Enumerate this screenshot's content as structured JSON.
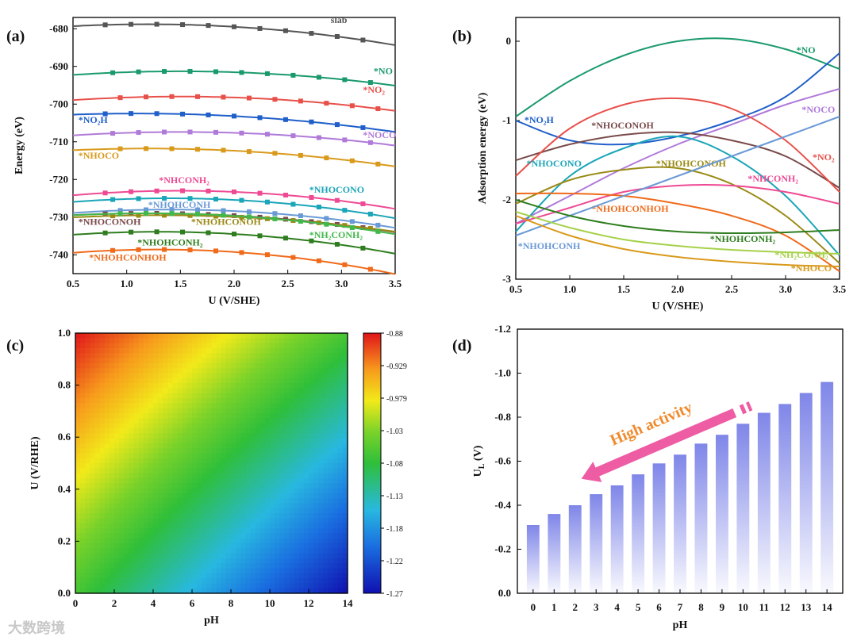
{
  "watermark": "大数跨境",
  "chart_data": [
    {
      "panel": "(a)",
      "type": "line",
      "xlabel": "U (V/SHE)",
      "ylabel": "Energy (eV)",
      "xlim": [
        0.5,
        3.5
      ],
      "ylim": [
        -745,
        -677
      ],
      "xticks": [
        0.5,
        1.0,
        1.5,
        2.0,
        2.5,
        3.0,
        3.5
      ],
      "yticks": [
        -680,
        -690,
        -700,
        -710,
        -720,
        -730,
        -740
      ],
      "markers": "square",
      "series": [
        {
          "name": "slab",
          "color": "#555555",
          "vertex_u": 1.2,
          "vertex_e": -678.8,
          "curv": 1.05,
          "label_pos": [
            2.9,
            -678.5
          ]
        },
        {
          "name": "*NO",
          "color": "#1a9a6c",
          "vertex_u": 1.5,
          "vertex_e": -691.3,
          "curv": 0.95,
          "label_pos": [
            3.3,
            -692
          ]
        },
        {
          "name": "*NO₂",
          "color": "#e8504a",
          "vertex_u": 1.5,
          "vertex_e": -698.0,
          "curv": 0.95,
          "label_pos": [
            3.2,
            -697
          ]
        },
        {
          "name": "*NO₂H",
          "color": "#1f5fc9",
          "vertex_u": 1.1,
          "vertex_e": -702.5,
          "curv": 0.85,
          "label_pos": [
            0.55,
            -705
          ]
        },
        {
          "name": "*NOCO",
          "color": "#b07ad8",
          "vertex_u": 1.5,
          "vertex_e": -707.4,
          "curv": 0.9,
          "label_pos": [
            3.2,
            -709
          ]
        },
        {
          "name": "*NHOCO",
          "color": "#d99a1c",
          "vertex_u": 1.2,
          "vertex_e": -711.8,
          "curv": 0.9,
          "label_pos": [
            0.55,
            -714.5
          ]
        },
        {
          "name": "*NHCONH₂",
          "color": "#ee4a93",
          "vertex_u": 1.5,
          "vertex_e": -723.0,
          "curv": 1.2,
          "label_pos": [
            1.3,
            -721
          ]
        },
        {
          "name": "*NHOCONO",
          "color": "#1aa5b8",
          "vertex_u": 1.4,
          "vertex_e": -725.0,
          "curv": 1.2,
          "label_pos": [
            2.7,
            -723.5
          ]
        },
        {
          "name": "*NHOHCONH",
          "color": "#6a9ad6",
          "vertex_u": 1.4,
          "vertex_e": -728.0,
          "curv": 1.1,
          "label_pos": [
            1.2,
            -727.5
          ]
        },
        {
          "name": "*NHOCONOH",
          "color": "#7a4a4a",
          "vertex_u": 1.2,
          "vertex_e": -729.0,
          "curv": 0.95,
          "label_pos": [
            0.55,
            -732
          ]
        },
        {
          "name": "*NHOHCONOH",
          "color": "#9a8a16",
          "vertex_u": 1.3,
          "vertex_e": -729.5,
          "curv": 0.9,
          "label_pos": [
            1.6,
            -732
          ]
        },
        {
          "name": "*NH₂CONH₂",
          "color": "#42b84a",
          "vertex_u": 1.2,
          "vertex_e": -729.0,
          "curv": 1.05,
          "label_pos": [
            2.7,
            -735.5
          ]
        },
        {
          "name": "*NHOHCONH₂",
          "color": "#2e7d1e",
          "vertex_u": 1.3,
          "vertex_e": -733.9,
          "curv": 1.2,
          "label_pos": [
            1.1,
            -737.5
          ]
        },
        {
          "name": "*NHOHCONHOH",
          "color": "#ef6a1a",
          "vertex_u": 1.3,
          "vertex_e": -738.6,
          "curv": 1.35,
          "label_pos": [
            0.65,
            -741.5
          ]
        }
      ]
    },
    {
      "panel": "(b)",
      "type": "line",
      "xlabel": "U (V/SHE)",
      "ylabel": "Adsorption energy (eV)",
      "xlim": [
        0.5,
        3.5
      ],
      "ylim": [
        -3,
        0.3
      ],
      "xticks": [
        0.5,
        1.0,
        1.5,
        2.0,
        2.5,
        3.0,
        3.5
      ],
      "yticks": [
        0,
        -1,
        -2,
        -3
      ],
      "series": [
        {
          "name": "*NO",
          "color": "#1a9a6c",
          "u": [
            0.5,
            1.0,
            1.5,
            2.0,
            2.5,
            3.0,
            3.5
          ],
          "e": [
            -0.95,
            -0.5,
            -0.18,
            0.0,
            0.03,
            -0.1,
            -0.35
          ],
          "label_pos": [
            3.1,
            -0.15
          ]
        },
        {
          "name": "*NO₂H",
          "color": "#1f5fc9",
          "u": [
            0.5,
            1.0,
            1.5,
            2.0,
            2.5,
            3.0,
            3.5
          ],
          "e": [
            -1.0,
            -1.25,
            -1.3,
            -1.2,
            -1.0,
            -0.7,
            -0.15
          ],
          "label_pos": [
            0.58,
            -1.03
          ]
        },
        {
          "name": "*NOCO",
          "color": "#b07ad8",
          "u": [
            0.5,
            1.0,
            1.5,
            2.0,
            2.5,
            3.0,
            3.5
          ],
          "e": [
            -2.3,
            -1.95,
            -1.6,
            -1.3,
            -1.05,
            -0.8,
            -0.6
          ],
          "label_pos": [
            3.15,
            -0.9
          ]
        },
        {
          "name": "*NHOCONOH",
          "color": "#7a4a4a",
          "u": [
            0.5,
            1.0,
            1.5,
            2.0,
            2.5,
            3.0,
            3.5
          ],
          "e": [
            -1.5,
            -1.3,
            -1.18,
            -1.15,
            -1.25,
            -1.45,
            -1.85
          ],
          "label_pos": [
            1.2,
            -1.1
          ]
        },
        {
          "name": "*NO₂",
          "color": "#e8504a",
          "u": [
            0.5,
            1.0,
            1.5,
            2.0,
            2.5,
            3.0,
            3.5
          ],
          "e": [
            -1.7,
            -1.1,
            -0.8,
            -0.72,
            -0.85,
            -1.25,
            -1.9
          ],
          "label_pos": [
            3.25,
            -1.5
          ]
        },
        {
          "name": "*NHOCONO",
          "color": "#1aa5b8",
          "u": [
            0.5,
            1.0,
            1.5,
            2.0,
            2.5,
            3.0,
            3.5
          ],
          "e": [
            -2.4,
            -1.7,
            -1.35,
            -1.2,
            -1.45,
            -1.95,
            -2.7
          ],
          "label_pos": [
            0.6,
            -1.58
          ]
        },
        {
          "name": "*NHOHCONOH",
          "color": "#9a8a16",
          "u": [
            0.5,
            1.0,
            1.5,
            2.0,
            2.5,
            3.0,
            3.5
          ],
          "e": [
            -2.05,
            -1.75,
            -1.62,
            -1.6,
            -1.8,
            -2.2,
            -2.8
          ],
          "label_pos": [
            1.8,
            -1.58
          ]
        },
        {
          "name": "*NHCONH₂",
          "color": "#ee4a93",
          "u": [
            0.5,
            1.0,
            1.5,
            2.0,
            2.5,
            3.0,
            3.5
          ],
          "e": [
            -2.3,
            -2.1,
            -1.9,
            -1.82,
            -1.82,
            -1.9,
            -2.05
          ],
          "label_pos": [
            2.65,
            -1.77
          ]
        },
        {
          "name": "*NHOHCONHOH",
          "color": "#ef6a1a",
          "u": [
            0.5,
            1.0,
            1.5,
            2.0,
            2.5,
            3.0,
            3.5
          ],
          "e": [
            -1.92,
            -1.92,
            -1.95,
            -2.05,
            -2.2,
            -2.45,
            -2.9
          ],
          "label_pos": [
            1.2,
            -2.15
          ]
        },
        {
          "name": "*NHOHCONH",
          "color": "#6a9ad6",
          "u": [
            0.5,
            1.0,
            1.5,
            2.0,
            2.5,
            3.0,
            3.5
          ],
          "e": [
            -2.45,
            -2.2,
            -1.95,
            -1.7,
            -1.45,
            -1.2,
            -0.95
          ],
          "label_pos": [
            0.52,
            -2.62
          ]
        },
        {
          "name": "*NHOHCONH₂",
          "color": "#2e7d1e",
          "u": [
            0.5,
            1.0,
            1.5,
            2.0,
            2.5,
            3.0,
            3.5
          ],
          "e": [
            -2.0,
            -2.2,
            -2.33,
            -2.4,
            -2.42,
            -2.41,
            -2.38
          ],
          "label_pos": [
            2.3,
            -2.53
          ]
        },
        {
          "name": "*NH₂CONH₂",
          "color": "#a6d14a",
          "u": [
            0.5,
            1.0,
            1.5,
            2.0,
            2.5,
            3.0,
            3.5
          ],
          "e": [
            -2.15,
            -2.35,
            -2.5,
            -2.58,
            -2.63,
            -2.66,
            -2.68
          ],
          "label_pos": [
            2.9,
            -2.73
          ]
        },
        {
          "name": "*NHOCO",
          "color": "#d99a1c",
          "u": [
            0.5,
            1.0,
            1.5,
            2.0,
            2.5,
            3.0,
            3.5
          ],
          "e": [
            -2.2,
            -2.45,
            -2.62,
            -2.72,
            -2.78,
            -2.82,
            -2.84
          ],
          "label_pos": [
            3.05,
            -2.9
          ]
        }
      ]
    },
    {
      "panel": "(c)",
      "type": "heatmap",
      "xlabel": "pH",
      "ylabel": "U (V/RHE)",
      "xlim": [
        0,
        14
      ],
      "ylim": [
        0,
        1.0
      ],
      "xticks": [
        0,
        2,
        4,
        6,
        8,
        10,
        12,
        14
      ],
      "yticks": [
        0.0,
        0.2,
        0.4,
        0.6,
        0.8,
        1.0
      ],
      "colorbar_ticks": [
        "-0.88",
        "-0.929",
        "-0.979",
        "-1.03",
        "-1.08",
        "-1.13",
        "-1.18",
        "-1.22",
        "-1.27"
      ],
      "colorbar_range": [
        -1.27,
        -0.88
      ],
      "value_at_corners": {
        "pH0_U1": -0.88,
        "pH0_U0": -1.06,
        "pH14_U1": -1.06,
        "pH14_U0": -1.27
      }
    },
    {
      "panel": "(d)",
      "type": "bar",
      "xlabel": "pH",
      "ylabel": "U_L (V)",
      "categories": [
        "0",
        "1",
        "2",
        "3",
        "4",
        "5",
        "6",
        "7",
        "8",
        "9",
        "10",
        "11",
        "12",
        "13",
        "14"
      ],
      "values": [
        -0.31,
        -0.36,
        -0.4,
        -0.45,
        -0.49,
        -0.54,
        -0.59,
        -0.63,
        -0.68,
        -0.72,
        -0.77,
        -0.82,
        -0.86,
        -0.91,
        -0.96
      ],
      "ylim": [
        0.0,
        -1.2
      ],
      "yticks": [
        "0.0",
        "-0.2",
        "-0.4",
        "-0.6",
        "-0.8",
        "-1.0",
        "-1.2"
      ],
      "annotation": "High activity",
      "bar_color": "#7f86e8"
    }
  ]
}
